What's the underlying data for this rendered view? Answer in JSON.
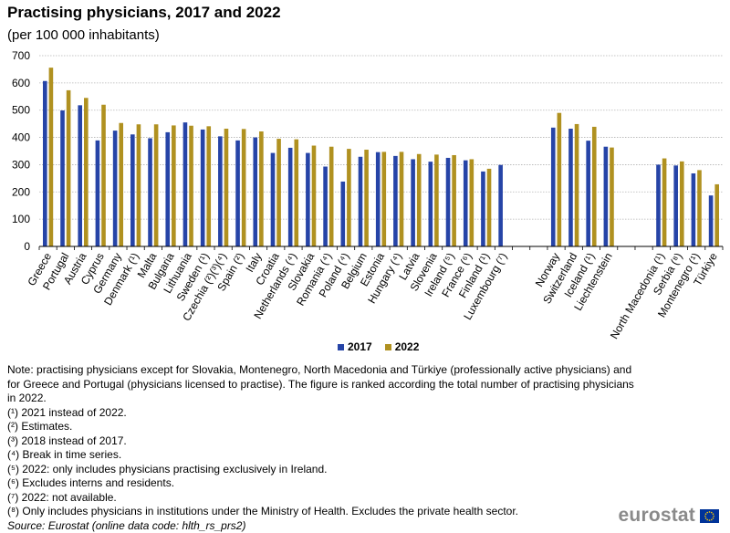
{
  "header": {
    "title": "Practising physicians, 2017 and 2022",
    "subtitle": "(per 100 000 inhabitants)"
  },
  "chart_data": {
    "type": "bar",
    "title": "Practising physicians, 2017 and 2022",
    "subtitle": "(per 100 000 inhabitants)",
    "xlabel": "",
    "ylabel": "",
    "ylim": [
      0,
      700
    ],
    "yticks": [
      0,
      100,
      200,
      300,
      400,
      500,
      600,
      700
    ],
    "grid": true,
    "legend_position": "bottom",
    "groups": [
      {
        "categories": [
          "Greece",
          "Portugal",
          "Austria",
          "Cyprus",
          "Germany",
          "Denmark (¹)",
          "Malta",
          "Bulgaria",
          "Lithuania",
          "Sweden (¹)",
          "Czechia (²)(³)(⁴)",
          "Spain (²)",
          "Italy",
          "Croatia",
          "Netherlands (⁴)",
          "Slovakia",
          "Romania (⁴)",
          "Poland (⁴)",
          "Belgium",
          "Estonia",
          "Hungary (⁴)",
          "Latvia",
          "Slovenia",
          "Ireland (⁵)",
          "France (⁶)",
          "Finland (¹)",
          "Luxembourg (⁷)"
        ]
      },
      {
        "categories": [
          "Norway",
          "Switzerland",
          "Iceland (¹)",
          "Liechtenstein"
        ]
      },
      {
        "categories": [
          "North Macedonia (¹)",
          "Serbia (⁸)",
          "Montenegro (¹)",
          "Türkiye"
        ]
      }
    ],
    "categories": [
      "Greece",
      "Portugal",
      "Austria",
      "Cyprus",
      "Germany",
      "Denmark (¹)",
      "Malta",
      "Bulgaria",
      "Lithuania",
      "Sweden (¹)",
      "Czechia (²)(³)(⁴)",
      "Spain (²)",
      "Italy",
      "Croatia",
      "Netherlands (⁴)",
      "Slovakia",
      "Romania (⁴)",
      "Poland (⁴)",
      "Belgium",
      "Estonia",
      "Hungary (⁴)",
      "Latvia",
      "Slovenia",
      "Ireland (⁵)",
      "France (⁶)",
      "Finland (¹)",
      "Luxembourg (⁷)",
      "Norway",
      "Switzerland",
      "Iceland (¹)",
      "Liechtenstein",
      "North Macedonia (¹)",
      "Serbia (⁸)",
      "Montenegro (¹)",
      "Türkiye"
    ],
    "series": [
      {
        "name": "2017",
        "color": "#2644a7",
        "values": [
          607,
          499,
          518,
          389,
          425,
          411,
          397,
          419,
          455,
          429,
          404,
          389,
          400,
          343,
          362,
          343,
          293,
          238,
          329,
          346,
          332,
          320,
          311,
          325,
          316,
          275,
          299,
          436,
          432,
          388,
          366,
          300,
          297,
          268,
          187
        ]
      },
      {
        "name": "2022",
        "color": "#b09120",
        "values": [
          656,
          573,
          545,
          520,
          453,
          448,
          448,
          444,
          443,
          441,
          432,
          431,
          422,
          395,
          393,
          370,
          366,
          358,
          355,
          347,
          347,
          339,
          337,
          335,
          320,
          285,
          null,
          490,
          449,
          439,
          363,
          323,
          312,
          280,
          228
        ]
      }
    ]
  },
  "legend": {
    "items": [
      {
        "label": "2017",
        "color": "#2644a7"
      },
      {
        "label": "2022",
        "color": "#b09120"
      }
    ]
  },
  "notes": [
    "Note: practising physicians except for Slovakia, Montenegro, North Macedonia and Türkiye (professionally active physicians) and for Greece and Portugal (physicians licensed to practise). The figure is ranked according the total number of practising physicians in 2022.",
    "(¹) 2021 instead of 2022.",
    "(²) Estimates.",
    "(³) 2018 instead of 2017.",
    "(⁴) Break in time series.",
    "(⁵) 2022: only includes physicians practising exclusively  in Ireland.",
    "(⁶) Excludes interns and residents.",
    "(⁷) 2022: not available.",
    "(⁸) Only includes physicians in institutions under the Ministry of Health. Excludes the private health sector."
  ],
  "source": "Source: Eurostat (online data code: hlth_rs_prs2)",
  "logo": {
    "text": "eurostat",
    "icon": "eu-flag-icon"
  }
}
